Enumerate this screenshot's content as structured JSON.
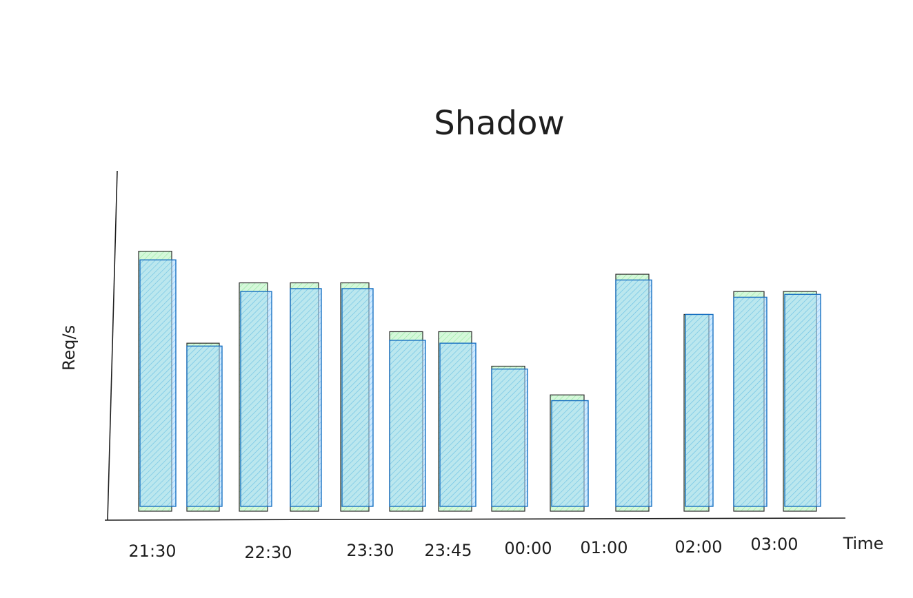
{
  "chart_data": {
    "type": "bar",
    "title": "Shadow",
    "xlabel": "Time",
    "ylabel": "Req/s",
    "tick_labels": [
      "21:30",
      "22:30",
      "23:30",
      "23:45",
      "00:00",
      "01:00",
      "02:00",
      "03:00"
    ],
    "ylim": [
      0,
      100
    ],
    "grid": false,
    "legend": "none",
    "series": [
      {
        "values": [
          {
            "main": 87,
            "shadow": 90
          },
          {
            "main": 57,
            "shadow": 58
          },
          {
            "main": 76,
            "shadow": 79
          },
          {
            "main": 77,
            "shadow": 79
          },
          {
            "main": 77,
            "shadow": 79
          },
          {
            "main": 59,
            "shadow": 62
          },
          {
            "main": 58,
            "shadow": 62
          },
          {
            "main": 49,
            "shadow": 50
          },
          {
            "main": 38,
            "shadow": 40
          },
          {
            "main": 80,
            "shadow": 82
          },
          {
            "main": 68,
            "shadow": 68
          },
          {
            "main": 74,
            "shadow": 76
          },
          {
            "main": 75,
            "shadow": 76
          }
        ]
      }
    ],
    "colors": {
      "main_fill": "#a5d8ff",
      "main_stroke": "#1971c2",
      "shadow_fill": "#b2f2bb",
      "shadow_stroke": "#2b2b2b",
      "axis": "#1e1e1e"
    }
  }
}
